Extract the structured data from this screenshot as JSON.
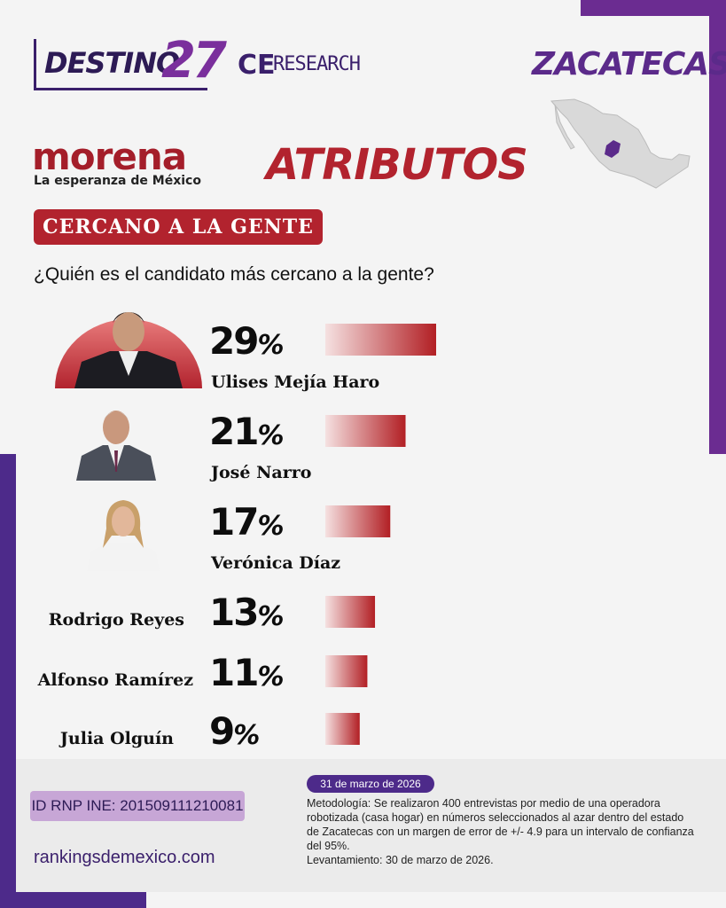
{
  "header": {
    "brand_destino": "DESTINO",
    "brand_destino_num": "27",
    "brand_ce": "CE",
    "brand_research": "RESEARCH",
    "state": "ZACATECAS",
    "party": "morena",
    "party_tagline": "La esperanza de México",
    "section": "ATRIBUTOS",
    "attribute_badge": "CERCANO A LA GENTE",
    "question": "¿Quién es el candidato más cercano a la gente?"
  },
  "colors": {
    "purple_frame": "#6b2c91",
    "accent_red": "#b2232e",
    "bar_gradient_start": "#f5e1e1",
    "bar_gradient_end": "#b21f24"
  },
  "chart_data": {
    "type": "bar",
    "orientation": "horizontal",
    "categories": [
      "Ulises Mejía Haro",
      "José Narro",
      "Verónica Díaz",
      "Rodrigo Reyes",
      "Alfonso Ramírez",
      "Julia Olguín"
    ],
    "values": [
      29,
      21,
      17,
      13,
      11,
      9
    ],
    "value_labels": [
      "29",
      "21",
      "17",
      "13",
      "11",
      "9"
    ],
    "unit": "%",
    "xlim": [
      0,
      29
    ]
  },
  "footer": {
    "rnp": "ID RNP INE: 201509111210081",
    "website": "rankingsdemexico.com",
    "date": "31 de marzo de 2026",
    "methodology": "Metodología: Se realizaron 400 entrevistas por medio de una operadora robotizada (casa hogar) en números seleccionados al azar dentro del estado de Zacatecas con un margen de error de +/- 4.9 para un intervalo de confianza del 95%.",
    "fieldwork": "Levantamiento: 30 de marzo de 2026."
  }
}
